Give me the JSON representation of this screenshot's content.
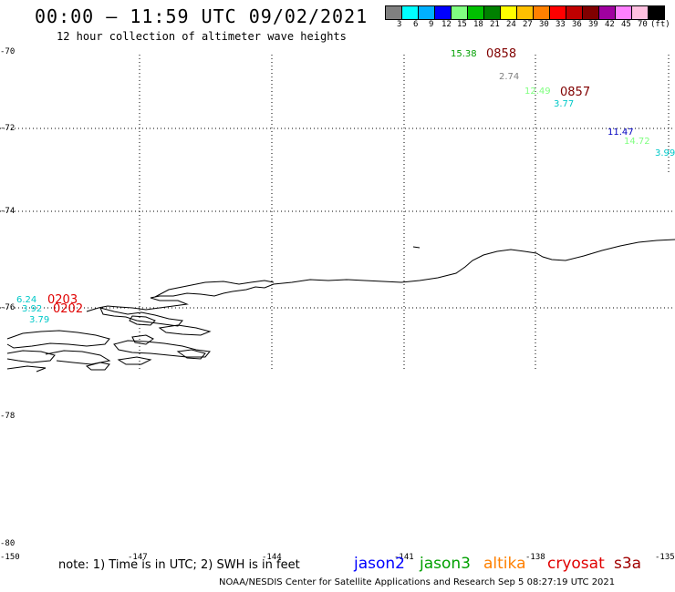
{
  "header": {
    "title": "00:00 – 11:59 UTC 09/02/2021",
    "subtitle": "12 hour collection of altimeter wave heights"
  },
  "color_scale": {
    "labels": [
      "3",
      "6",
      "9",
      "12",
      "15",
      "18",
      "21",
      "24",
      "27",
      "30",
      "33",
      "36",
      "39",
      "42",
      "45",
      "70",
      "(ft)"
    ],
    "colors": [
      "#808080",
      "#00ffff",
      "#00b0ff",
      "#0000ff",
      "#80ff80",
      "#00c000",
      "#008000",
      "#ffff00",
      "#ffc000",
      "#ff8000",
      "#ff0000",
      "#c00000",
      "#800000",
      "#a000a0",
      "#ff80ff",
      "#ffc0e0",
      "#000000"
    ]
  },
  "axes": {
    "lat_labels": [
      "-70",
      "-72",
      "-74",
      "-76",
      "-78",
      "-80"
    ],
    "lon_labels": [
      "-150",
      "-147",
      "-144",
      "-141",
      "-138",
      "-135"
    ]
  },
  "wave_heights": [
    {
      "text": "15.38",
      "color": "#00a000"
    },
    {
      "text": "2.74",
      "color": "#808080"
    },
    {
      "text": "12.49",
      "color": "#80ff80"
    },
    {
      "text": "3.77",
      "color": "#00c8c8"
    },
    {
      "text": "11.47",
      "color": "#0000c0"
    },
    {
      "text": "14.72",
      "color": "#80ff80"
    },
    {
      "text": "3.99",
      "color": "#00c8c8"
    },
    {
      "text": "6.24",
      "color": "#00c8c8"
    },
    {
      "text": "3.92",
      "color": "#00c8c8"
    },
    {
      "text": "3.79",
      "color": "#00c8c8"
    }
  ],
  "pass_times": [
    {
      "text": "0858",
      "color": "#800000"
    },
    {
      "text": "0857",
      "color": "#800000"
    },
    {
      "text": "0203",
      "color": "#e00000"
    },
    {
      "text": "0202",
      "color": "#e00000"
    }
  ],
  "footer": {
    "note": "note: 1) Time is in UTC; 2) SWH is in feet",
    "satellites": [
      {
        "name": "jason2",
        "color": "#0000ff"
      },
      {
        "name": "jason3",
        "color": "#00a000"
      },
      {
        "name": "altika",
        "color": "#ff8000"
      },
      {
        "name": "cryosat",
        "color": "#e00000"
      },
      {
        "name": "s3a",
        "color": "#a00000"
      }
    ],
    "credit": "NOAA/NESDIS Center for Satellite Applications and Research    Sep  5 08:27:19 UTC 2021"
  }
}
